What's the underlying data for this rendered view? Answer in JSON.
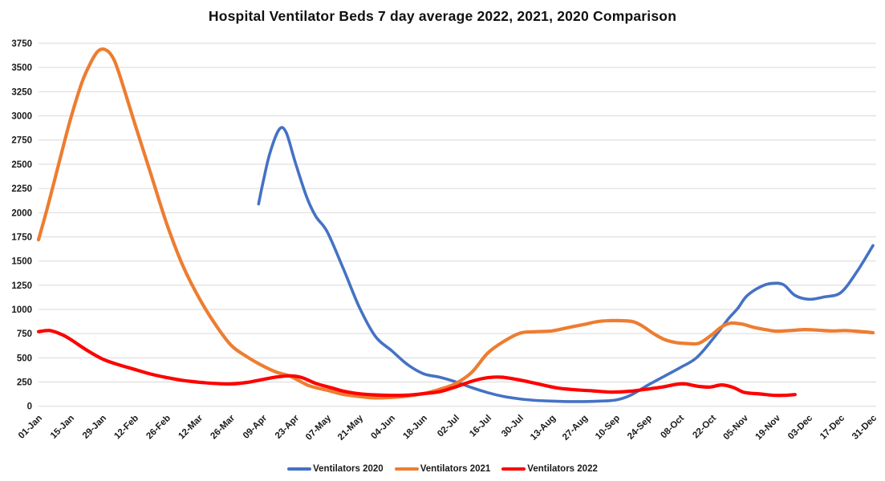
{
  "chart_data": {
    "type": "line",
    "title": "Hospital Ventilator Beds 7 day average 2022, 2021, 2020 Comparison",
    "xlabel": "",
    "ylabel": "",
    "ylim": [
      0,
      3750
    ],
    "y_ticks": [
      0,
      250,
      500,
      750,
      1000,
      1250,
      1500,
      1750,
      2000,
      2250,
      2500,
      2750,
      3000,
      3250,
      3500,
      3750
    ],
    "x_tick_labels": [
      "01-Jan",
      "15-Jan",
      "29-Jan",
      "12-Feb",
      "26-Feb",
      "12-Mar",
      "26-Mar",
      "09-Apr",
      "23-Apr",
      "07-May",
      "21-May",
      "04-Jun",
      "18-Jun",
      "02-Jul",
      "16-Jul",
      "30-Jul",
      "13-Aug",
      "27-Aug",
      "10-Sep",
      "24-Sep",
      "08-Oct",
      "22-Oct",
      "05-Nov",
      "19-Nov",
      "03-Dec",
      "17-Dec",
      "31-Dec"
    ],
    "x_tick_days": [
      0,
      14,
      28,
      42,
      56,
      70,
      84,
      98,
      112,
      126,
      140,
      154,
      168,
      182,
      196,
      210,
      224,
      238,
      252,
      266,
      280,
      294,
      308,
      322,
      336,
      350,
      364
    ],
    "xlim_days": [
      0,
      364
    ],
    "grid": "horizontal",
    "gridline_color": "#d9d9d9",
    "legend_position": "bottom-center",
    "series": [
      {
        "name": "Ventilators 2020",
        "color": "#4472C4",
        "points": [
          [
            96,
            2090
          ],
          [
            98,
            2320
          ],
          [
            101,
            2620
          ],
          [
            105,
            2860
          ],
          [
            108,
            2830
          ],
          [
            112,
            2520
          ],
          [
            117,
            2160
          ],
          [
            121,
            1960
          ],
          [
            126,
            1800
          ],
          [
            133,
            1420
          ],
          [
            140,
            1020
          ],
          [
            147,
            720
          ],
          [
            154,
            575
          ],
          [
            161,
            430
          ],
          [
            168,
            335
          ],
          [
            175,
            300
          ],
          [
            182,
            252
          ],
          [
            189,
            192
          ],
          [
            196,
            140
          ],
          [
            203,
            100
          ],
          [
            210,
            75
          ],
          [
            217,
            60
          ],
          [
            224,
            53
          ],
          [
            231,
            48
          ],
          [
            238,
            48
          ],
          [
            245,
            53
          ],
          [
            252,
            65
          ],
          [
            258,
            110
          ],
          [
            266,
            220
          ],
          [
            273,
            310
          ],
          [
            280,
            400
          ],
          [
            287,
            500
          ],
          [
            294,
            690
          ],
          [
            301,
            905
          ],
          [
            305,
            1010
          ],
          [
            309,
            1140
          ],
          [
            315,
            1235
          ],
          [
            320,
            1270
          ],
          [
            325,
            1255
          ],
          [
            330,
            1145
          ],
          [
            336,
            1105
          ],
          [
            343,
            1130
          ],
          [
            350,
            1175
          ],
          [
            357,
            1390
          ],
          [
            364,
            1660
          ]
        ]
      },
      {
        "name": "Ventilators 2021",
        "color": "#ED7D31",
        "points": [
          [
            0,
            1720
          ],
          [
            4,
            2060
          ],
          [
            9,
            2520
          ],
          [
            14,
            2970
          ],
          [
            19,
            3350
          ],
          [
            23,
            3560
          ],
          [
            26,
            3670
          ],
          [
            29,
            3685
          ],
          [
            32,
            3620
          ],
          [
            35,
            3450
          ],
          [
            42,
            2920
          ],
          [
            49,
            2400
          ],
          [
            56,
            1880
          ],
          [
            63,
            1450
          ],
          [
            70,
            1120
          ],
          [
            77,
            850
          ],
          [
            84,
            630
          ],
          [
            91,
            510
          ],
          [
            98,
            415
          ],
          [
            104,
            350
          ],
          [
            110,
            308
          ],
          [
            118,
            212
          ],
          [
            126,
            165
          ],
          [
            133,
            122
          ],
          [
            140,
            100
          ],
          [
            147,
            85
          ],
          [
            154,
            90
          ],
          [
            161,
            105
          ],
          [
            168,
            130
          ],
          [
            175,
            175
          ],
          [
            182,
            235
          ],
          [
            189,
            350
          ],
          [
            196,
            550
          ],
          [
            203,
            670
          ],
          [
            210,
            755
          ],
          [
            217,
            770
          ],
          [
            224,
            778
          ],
          [
            231,
            812
          ],
          [
            238,
            845
          ],
          [
            244,
            875
          ],
          [
            249,
            884
          ],
          [
            254,
            884
          ],
          [
            259,
            875
          ],
          [
            263,
            835
          ],
          [
            268,
            755
          ],
          [
            273,
            690
          ],
          [
            278,
            658
          ],
          [
            283,
            648
          ],
          [
            288,
            650
          ],
          [
            293,
            725
          ],
          [
            298,
            820
          ],
          [
            302,
            858
          ],
          [
            307,
            848
          ],
          [
            312,
            815
          ],
          [
            318,
            788
          ],
          [
            322,
            775
          ],
          [
            328,
            782
          ],
          [
            334,
            792
          ],
          [
            340,
            786
          ],
          [
            346,
            778
          ],
          [
            352,
            782
          ],
          [
            358,
            772
          ],
          [
            364,
            760
          ]
        ]
      },
      {
        "name": "Ventilators 2022",
        "color": "#FF0000",
        "points": [
          [
            0,
            770
          ],
          [
            5,
            782
          ],
          [
            10,
            742
          ],
          [
            14,
            690
          ],
          [
            21,
            580
          ],
          [
            28,
            487
          ],
          [
            35,
            428
          ],
          [
            42,
            380
          ],
          [
            49,
            332
          ],
          [
            56,
            296
          ],
          [
            63,
            266
          ],
          [
            70,
            248
          ],
          [
            77,
            235
          ],
          [
            84,
            230
          ],
          [
            91,
            246
          ],
          [
            98,
            277
          ],
          [
            104,
            302
          ],
          [
            110,
            314
          ],
          [
            115,
            295
          ],
          [
            121,
            235
          ],
          [
            127,
            195
          ],
          [
            133,
            156
          ],
          [
            140,
            128
          ],
          [
            147,
            117
          ],
          [
            154,
            112
          ],
          [
            161,
            114
          ],
          [
            168,
            130
          ],
          [
            175,
            150
          ],
          [
            182,
            200
          ],
          [
            189,
            258
          ],
          [
            196,
            295
          ],
          [
            202,
            300
          ],
          [
            209,
            275
          ],
          [
            217,
            235
          ],
          [
            226,
            190
          ],
          [
            234,
            170
          ],
          [
            242,
            158
          ],
          [
            250,
            146
          ],
          [
            258,
            155
          ],
          [
            265,
            175
          ],
          [
            272,
            198
          ],
          [
            278,
            225
          ],
          [
            282,
            230
          ],
          [
            288,
            205
          ],
          [
            293,
            198
          ],
          [
            298,
            220
          ],
          [
            303,
            195
          ],
          [
            308,
            142
          ],
          [
            315,
            126
          ],
          [
            321,
            112
          ],
          [
            326,
            113
          ],
          [
            330,
            120
          ]
        ]
      }
    ]
  }
}
